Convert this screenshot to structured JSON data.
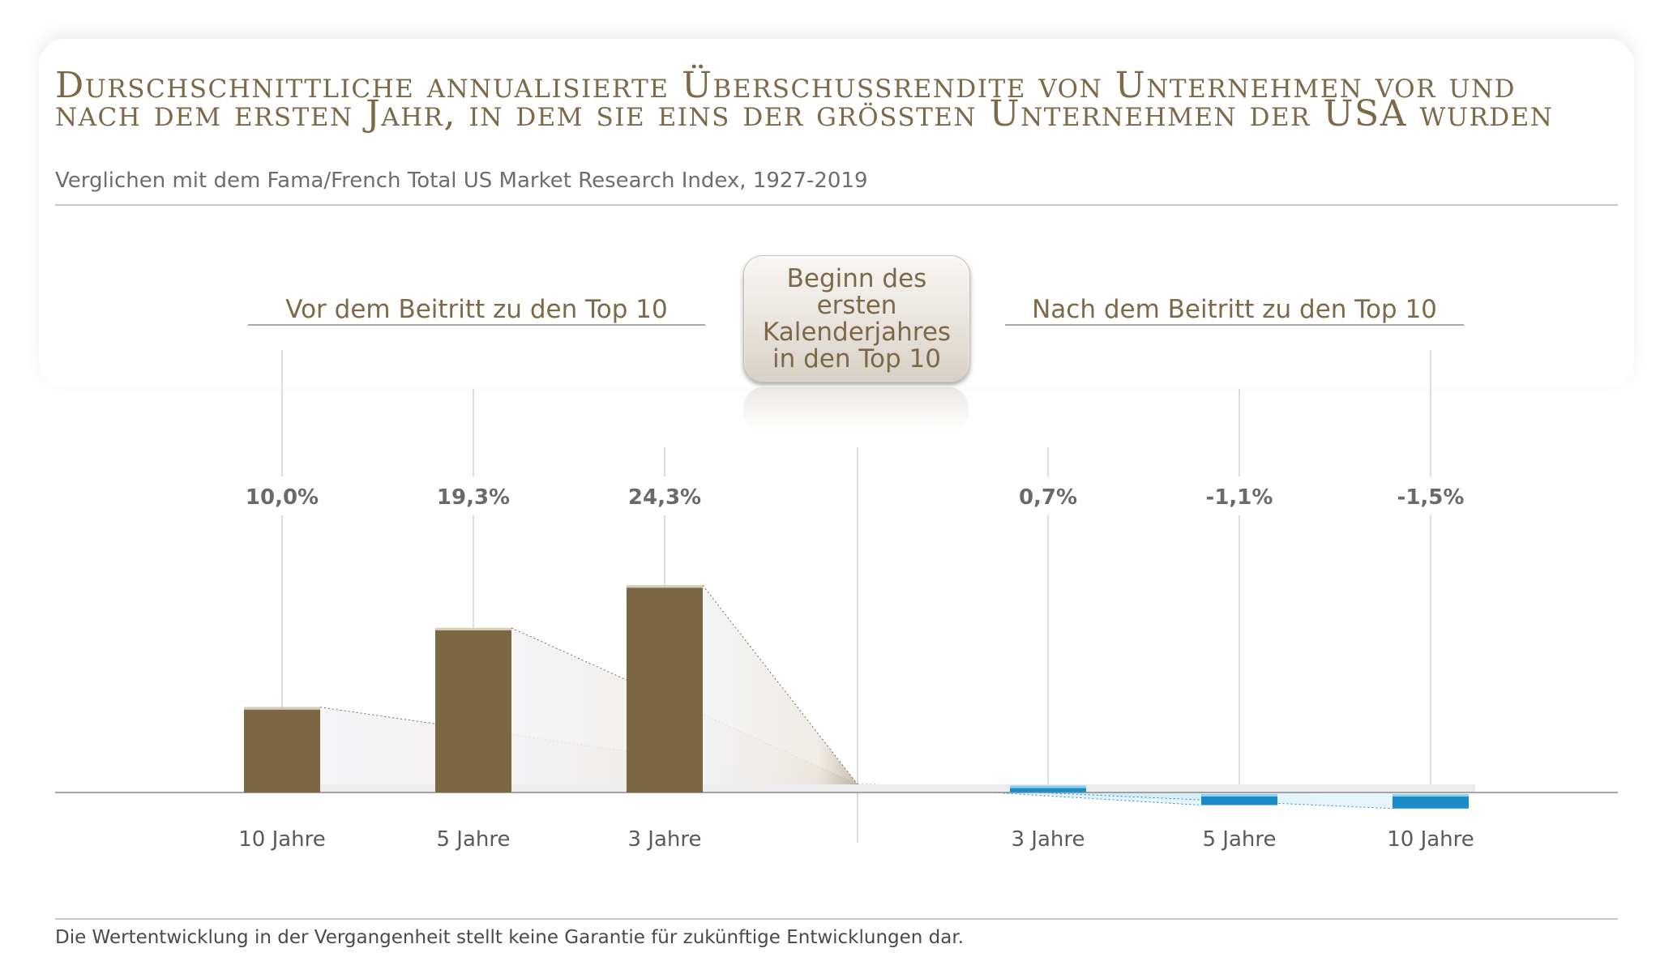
{
  "title": "Durschschnittliche annualisierte Überschussrendite von Unternehmen vor und nach dem ersten Jahr, in dem sie eins der grössten Unternehmen der USA wurden",
  "subtitle": "Verglichen mit dem Fama/French Total US Market Research Index, 1927-2019",
  "sections": {
    "before": "Vor dem Beitritt zu den Top 10",
    "after": "Nach dem Beitritt zu den Top 10"
  },
  "center_badge": "Beginn des\nersten\nKalenderjahres\nin den Top 10",
  "footnote": "Die Wertentwicklung in der Vergangenheit stellt keine Garantie für zukünftige Entwicklungen dar.",
  "colors": {
    "before_bar": "#7c6745",
    "after_bar": "#1a8cc8",
    "title": "#7d6848"
  },
  "chart_data": {
    "type": "bar",
    "title": "",
    "xlabel": "",
    "ylabel": "",
    "ylim": [
      -3,
      30
    ],
    "grid": false,
    "categories": [
      "10 Jahre",
      "5 Jahre",
      "3 Jahre",
      "3 Jahre",
      "5 Jahre",
      "10 Jahre"
    ],
    "groups": [
      "Vor dem Beitritt zu den Top 10",
      "Vor dem Beitritt zu den Top 10",
      "Vor dem Beitritt zu den Top 10",
      "Nach dem Beitritt zu den Top 10",
      "Nach dem Beitritt zu den Top 10",
      "Nach dem Beitritt zu den Top 10"
    ],
    "values": [
      10.0,
      19.3,
      24.3,
      0.7,
      -1.1,
      -1.5
    ],
    "value_labels": [
      "10,0%",
      "19,3%",
      "24,3%",
      "0,7%",
      "-1,1%",
      "-1,5%"
    ]
  }
}
